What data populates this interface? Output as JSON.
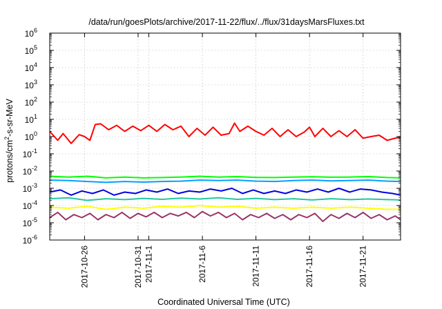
{
  "chart_data": {
    "type": "line",
    "title": "/data/run/goesPlots/archive/2017-11-22/flux/../flux/31daysMarsFluxes.txt",
    "xlabel": "Coordinated Universal Time (UTC)",
    "ylabel": {
      "main": "protons/cm",
      "sup": "2",
      "rest": "-s-sr-MeV"
    },
    "yscale": "log",
    "ylim": [
      -6,
      6
    ],
    "xlim": [
      "2017-10-22T18:00",
      "2017-11-24T12:00"
    ],
    "grid": true,
    "y_ticks": [
      {
        "exp": -6,
        "label": "-6"
      },
      {
        "exp": -5,
        "label": "-5"
      },
      {
        "exp": -4,
        "label": "-4"
      },
      {
        "exp": -3,
        "label": "-3"
      },
      {
        "exp": -2,
        "label": "-2"
      },
      {
        "exp": -1,
        "label": "-1"
      },
      {
        "exp": 0,
        "label": "0"
      },
      {
        "exp": 1,
        "label": "1"
      },
      {
        "exp": 2,
        "label": "2"
      },
      {
        "exp": 3,
        "label": "3"
      },
      {
        "exp": 4,
        "label": "4"
      },
      {
        "exp": 5,
        "label": "5"
      },
      {
        "exp": 6,
        "label": "6"
      }
    ],
    "y_tick_base": "10",
    "x_ticks": [
      "2017-10-26",
      "2017-10-31",
      "2017-11-1",
      "2017-11-6",
      "2017-11-11",
      "2017-11-16",
      "2017-11-21"
    ],
    "x_tick_dates": [
      "2017-10-26",
      "2017-10-31",
      "2017-11-01",
      "2017-11-06",
      "2017-11-11",
      "2017-11-16",
      "2017-11-21"
    ],
    "series": [
      {
        "color": "#ff0000",
        "x": [
          "2017-10-22T18:00",
          "2017-10-23T12:00",
          "2017-10-24T00:00",
          "2017-10-24T18:00",
          "2017-10-25T12:00",
          "2017-10-26T00:00",
          "2017-10-26T12:00",
          "2017-10-27T00:00",
          "2017-10-27T12:00",
          "2017-10-28T06:00",
          "2017-10-29T00:00",
          "2017-10-29T18:00",
          "2017-10-30T12:00",
          "2017-10-31T06:00",
          "2017-11-01T00:00",
          "2017-11-01T18:00",
          "2017-11-02T12:00",
          "2017-11-03T06:00",
          "2017-11-04T00:00",
          "2017-11-04T18:00",
          "2017-11-05T12:00",
          "2017-11-06T06:00",
          "2017-11-07T00:00",
          "2017-11-07T18:00",
          "2017-11-08T12:00",
          "2017-11-09T00:00",
          "2017-11-09T12:00",
          "2017-11-10T06:00",
          "2017-11-11T00:00",
          "2017-11-11T18:00",
          "2017-11-12T12:00",
          "2017-11-13T06:00",
          "2017-11-14T00:00",
          "2017-11-14T18:00",
          "2017-11-15T12:00",
          "2017-11-16T00:00",
          "2017-11-16T12:00",
          "2017-11-17T06:00",
          "2017-11-18T00:00",
          "2017-11-18T18:00",
          "2017-11-19T12:00",
          "2017-11-20T06:00",
          "2017-11-21T00:00",
          "2017-11-21T18:00",
          "2017-11-22T12:00",
          "2017-11-23T06:00",
          "2017-11-24T00:00",
          "2017-11-24T12:00"
        ],
        "values": [
          2.0,
          0.6,
          1.5,
          0.4,
          1.3,
          1.0,
          0.6,
          5.0,
          5.5,
          2.5,
          4.5,
          2.0,
          4.0,
          2.2,
          4.5,
          2.0,
          5.0,
          2.5,
          4.0,
          1.0,
          3.0,
          1.2,
          3.5,
          1.2,
          1.5,
          6.0,
          2.0,
          4.0,
          2.0,
          1.2,
          3.0,
          1.0,
          2.5,
          1.0,
          1.8,
          3.5,
          1.0,
          3.0,
          1.0,
          2.2,
          1.0,
          2.5,
          0.8,
          1.0,
          1.2,
          0.6,
          0.8,
          0.9
        ]
      },
      {
        "color": "#00ff00",
        "x": [
          "2017-10-22T18:00",
          "2017-10-24T12:00",
          "2017-10-26T06:00",
          "2017-10-28T00:00",
          "2017-10-29T18:00",
          "2017-10-31T12:00",
          "2017-11-02T06:00",
          "2017-11-04T00:00",
          "2017-11-05T18:00",
          "2017-11-07T12:00",
          "2017-11-09T06:00",
          "2017-11-11T00:00",
          "2017-11-12T18:00",
          "2017-11-14T12:00",
          "2017-11-16T06:00",
          "2017-11-18T00:00",
          "2017-11-19T18:00",
          "2017-11-21T12:00",
          "2017-11-23T06:00",
          "2017-11-24T12:00"
        ],
        "values": [
          0.005,
          0.0045,
          0.005,
          0.004,
          0.0045,
          0.004,
          0.0042,
          0.0045,
          0.005,
          0.0045,
          0.0048,
          0.0043,
          0.0042,
          0.0045,
          0.0047,
          0.0044,
          0.0045,
          0.0048,
          0.0042,
          0.004
        ]
      },
      {
        "color": "#00a0ff",
        "x": [
          "2017-10-22T18:00",
          "2017-10-24T12:00",
          "2017-10-26T06:00",
          "2017-10-28T00:00",
          "2017-10-29T18:00",
          "2017-10-31T12:00",
          "2017-11-02T06:00",
          "2017-11-04T00:00",
          "2017-11-05T18:00",
          "2017-11-07T12:00",
          "2017-11-09T06:00",
          "2017-11-11T00:00",
          "2017-11-12T18:00",
          "2017-11-14T12:00",
          "2017-11-16T06:00",
          "2017-11-18T00:00",
          "2017-11-19T18:00",
          "2017-11-21T12:00",
          "2017-11-23T06:00",
          "2017-11-24T12:00"
        ],
        "values": [
          0.003,
          0.0028,
          0.0025,
          0.0022,
          0.0025,
          0.0023,
          0.0025,
          0.0026,
          0.003,
          0.0028,
          0.003,
          0.0026,
          0.0025,
          0.0028,
          0.003,
          0.0027,
          0.0028,
          0.003,
          0.0026,
          0.0025
        ]
      },
      {
        "color": "#0000e0",
        "x": [
          "2017-10-22T18:00",
          "2017-10-23T18:00",
          "2017-10-24T18:00",
          "2017-10-25T18:00",
          "2017-10-26T18:00",
          "2017-10-27T18:00",
          "2017-10-28T18:00",
          "2017-10-29T18:00",
          "2017-10-30T18:00",
          "2017-10-31T18:00",
          "2017-11-01T18:00",
          "2017-11-02T18:00",
          "2017-11-03T18:00",
          "2017-11-04T18:00",
          "2017-11-05T18:00",
          "2017-11-06T18:00",
          "2017-11-07T18:00",
          "2017-11-08T18:00",
          "2017-11-09T18:00",
          "2017-11-10T18:00",
          "2017-11-11T18:00",
          "2017-11-12T18:00",
          "2017-11-13T18:00",
          "2017-11-14T18:00",
          "2017-11-15T18:00",
          "2017-11-16T18:00",
          "2017-11-17T18:00",
          "2017-11-18T18:00",
          "2017-11-19T18:00",
          "2017-11-20T18:00",
          "2017-11-21T18:00",
          "2017-11-22T18:00",
          "2017-11-23T18:00",
          "2017-11-24T12:00"
        ],
        "values": [
          0.0006,
          0.0008,
          0.0004,
          0.0007,
          0.0005,
          0.0008,
          0.0004,
          0.0006,
          0.0005,
          0.0008,
          0.0006,
          0.0009,
          0.0005,
          0.0007,
          0.0006,
          0.0009,
          0.0007,
          0.001,
          0.0005,
          0.0008,
          0.0005,
          0.0007,
          0.0005,
          0.0008,
          0.0006,
          0.0009,
          0.0006,
          0.001,
          0.0006,
          0.0009,
          0.0008,
          0.0006,
          0.0005,
          0.0004
        ]
      },
      {
        "color": "#20c8a0",
        "x": [
          "2017-10-22T18:00",
          "2017-10-24T12:00",
          "2017-10-26T06:00",
          "2017-10-28T00:00",
          "2017-10-29T18:00",
          "2017-10-31T12:00",
          "2017-11-02T06:00",
          "2017-11-04T00:00",
          "2017-11-05T18:00",
          "2017-11-07T12:00",
          "2017-11-09T06:00",
          "2017-11-11T00:00",
          "2017-11-12T18:00",
          "2017-11-14T12:00",
          "2017-11-16T06:00",
          "2017-11-18T00:00",
          "2017-11-19T18:00",
          "2017-11-21T12:00",
          "2017-11-23T06:00",
          "2017-11-24T12:00"
        ],
        "values": [
          0.00025,
          0.00028,
          0.0002,
          0.00025,
          0.00022,
          0.00026,
          0.00023,
          0.00027,
          0.00024,
          0.00028,
          0.00023,
          0.00026,
          0.00022,
          0.00025,
          0.00021,
          0.00025,
          0.00022,
          0.00024,
          0.00022,
          0.00021
        ]
      },
      {
        "color": "#ffff00",
        "x": [
          "2017-10-22T18:00",
          "2017-10-24T12:00",
          "2017-10-26T06:00",
          "2017-10-28T00:00",
          "2017-10-29T18:00",
          "2017-10-31T12:00",
          "2017-11-02T06:00",
          "2017-11-04T00:00",
          "2017-11-05T18:00",
          "2017-11-07T12:00",
          "2017-11-09T06:00",
          "2017-11-11T00:00",
          "2017-11-12T18:00",
          "2017-11-14T12:00",
          "2017-11-16T06:00",
          "2017-11-18T00:00",
          "2017-11-19T18:00",
          "2017-11-21T12:00",
          "2017-11-23T06:00",
          "2017-11-24T12:00"
        ],
        "values": [
          8e-05,
          7e-05,
          9e-05,
          6e-05,
          8e-05,
          7e-05,
          9e-05,
          8e-05,
          0.0001,
          8e-05,
          9e-05,
          7e-05,
          8e-05,
          7e-05,
          8e-05,
          7e-05,
          8e-05,
          7e-05,
          6e-05,
          6e-05
        ]
      },
      {
        "color": "#993366",
        "x": [
          "2017-10-22T18:00",
          "2017-10-23T12:00",
          "2017-10-24T06:00",
          "2017-10-25T00:00",
          "2017-10-25T18:00",
          "2017-10-26T12:00",
          "2017-10-27T06:00",
          "2017-10-28T00:00",
          "2017-10-28T18:00",
          "2017-10-29T12:00",
          "2017-10-30T06:00",
          "2017-10-31T00:00",
          "2017-10-31T18:00",
          "2017-11-01T12:00",
          "2017-11-02T06:00",
          "2017-11-03T00:00",
          "2017-11-03T18:00",
          "2017-11-04T12:00",
          "2017-11-05T06:00",
          "2017-11-06T00:00",
          "2017-11-06T18:00",
          "2017-11-07T12:00",
          "2017-11-08T06:00",
          "2017-11-09T00:00",
          "2017-11-09T18:00",
          "2017-11-10T12:00",
          "2017-11-11T06:00",
          "2017-11-12T00:00",
          "2017-11-12T18:00",
          "2017-11-13T12:00",
          "2017-11-14T06:00",
          "2017-11-15T00:00",
          "2017-11-15T18:00",
          "2017-11-16T12:00",
          "2017-11-17T06:00",
          "2017-11-18T00:00",
          "2017-11-18T18:00",
          "2017-11-19T12:00",
          "2017-11-20T06:00",
          "2017-11-21T00:00",
          "2017-11-21T18:00",
          "2017-11-22T12:00",
          "2017-11-23T06:00",
          "2017-11-24T00:00",
          "2017-11-24T12:00"
        ],
        "values": [
          2e-05,
          4e-05,
          1.5e-05,
          3e-05,
          2e-05,
          3.5e-05,
          1.5e-05,
          3e-05,
          2e-05,
          4e-05,
          1.8e-05,
          3.5e-05,
          2.2e-05,
          4e-05,
          2e-05,
          3.5e-05,
          2.5e-05,
          4e-05,
          2e-05,
          4.5e-05,
          2.5e-05,
          4e-05,
          2e-05,
          3.5e-05,
          1.5e-05,
          3e-05,
          2e-05,
          3.5e-05,
          1.8e-05,
          3e-05,
          1.5e-05,
          3e-05,
          2e-05,
          3.5e-05,
          1.2e-05,
          3e-05,
          1.8e-05,
          3.5e-05,
          2e-05,
          4e-05,
          1.8e-05,
          3e-05,
          1.5e-05,
          2.5e-05,
          1.5e-05
        ]
      }
    ]
  }
}
